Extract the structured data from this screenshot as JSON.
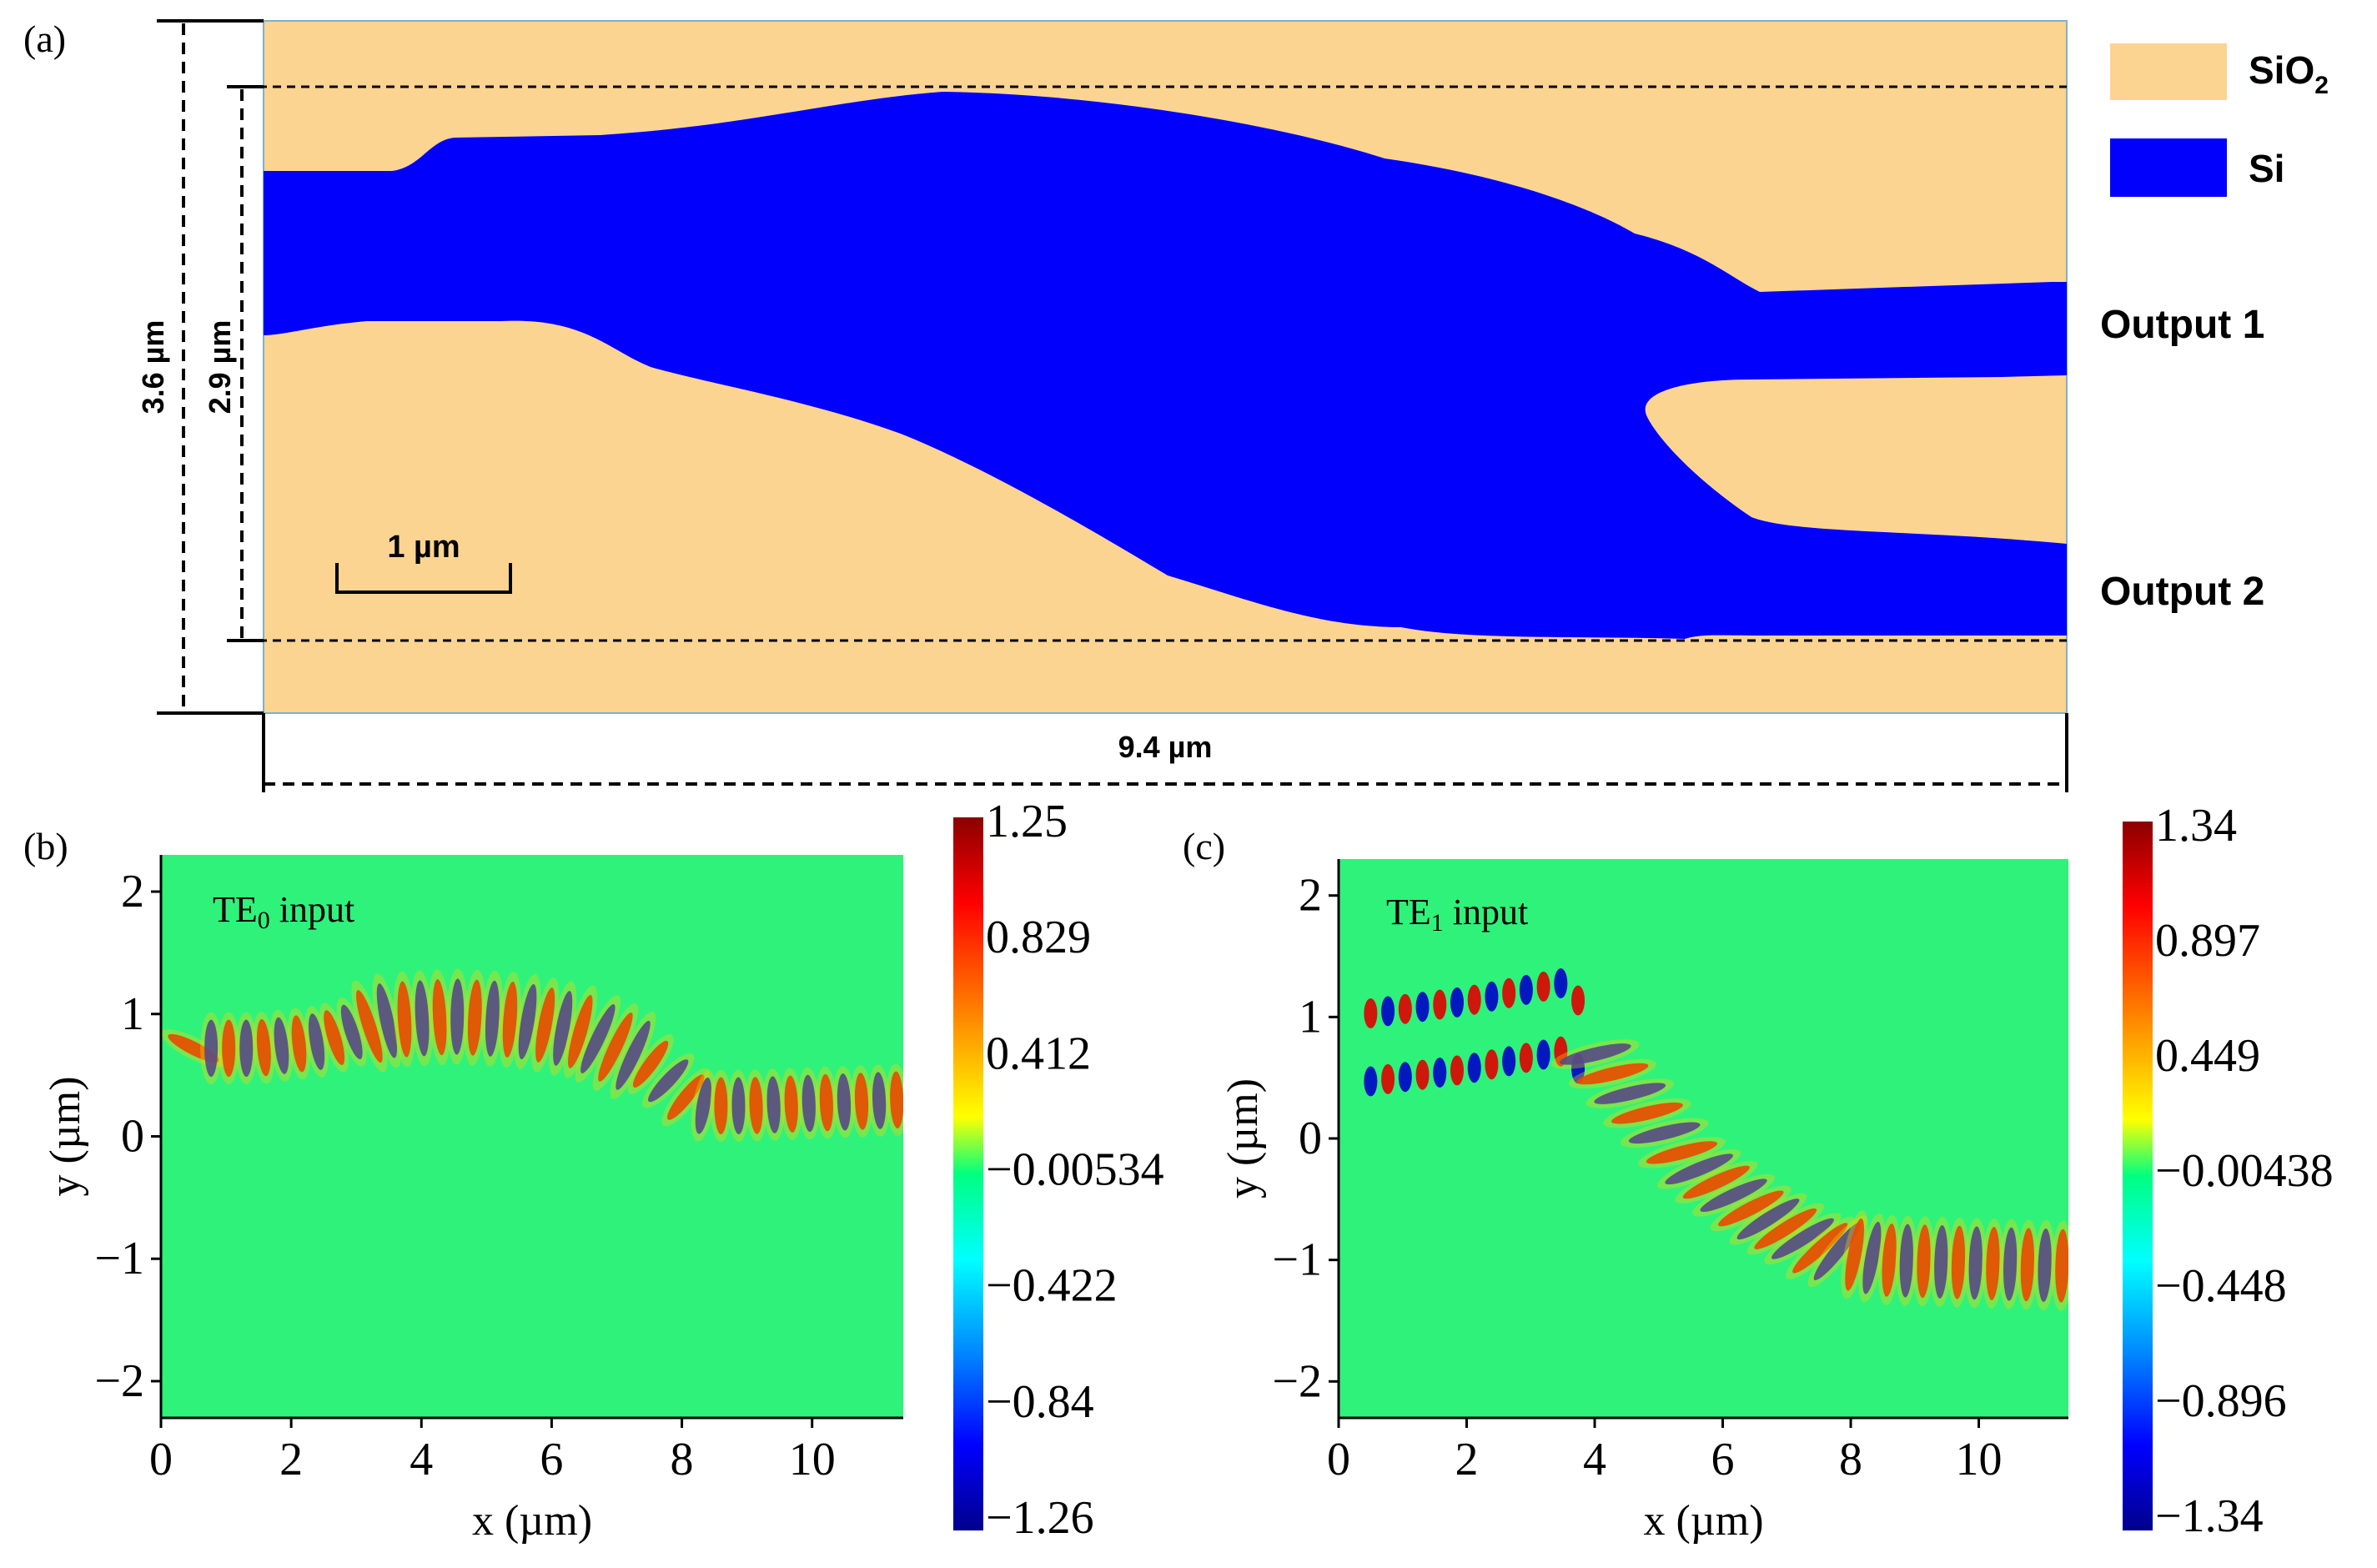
{
  "panel_a": {
    "label": "(a)",
    "legend": [
      {
        "name": "SiO",
        "sub": "2",
        "color": "#fbd491"
      },
      {
        "name": "Si",
        "sub": "",
        "color": "#0000fc"
      }
    ],
    "outputs": [
      "Output 1",
      "Output 2"
    ],
    "dim_outer": "3.6 µm",
    "dim_inner": "2.9 µm",
    "dim_length": "9.4 µm",
    "scale_bar": "1 µm"
  },
  "panel_b": {
    "label": "(b)",
    "annotation_main": "TE",
    "annotation_sub": "0",
    "annotation_rest": " input",
    "colorbar_ticks": [
      "1.25",
      "0.829",
      "0.412",
      "−0.00534",
      "−0.422",
      "−0.84",
      "−1.26"
    ]
  },
  "panel_c": {
    "label": "(c)",
    "annotation_main": "TE",
    "annotation_sub": "1",
    "annotation_rest": " input",
    "colorbar_ticks": [
      "1.34",
      "0.897",
      "0.449",
      "−0.00438",
      "−0.448",
      "−0.896",
      "−1.34"
    ]
  },
  "chart_data": [
    {
      "type": "heatmap",
      "title": "TE0 input",
      "xlabel": "x (µm)",
      "ylabel": "y (µm)",
      "xlim": [
        0,
        11.4
      ],
      "ylim": [
        -2.3,
        2.3
      ],
      "x_ticks": [
        0,
        2,
        4,
        6,
        8,
        10
      ],
      "y_ticks": [
        2,
        1,
        0,
        -1,
        -2
      ],
      "x_tick_labels": [
        "0",
        "2",
        "4",
        "6",
        "8",
        "10"
      ],
      "y_tick_labels": [
        "2",
        "1",
        "0",
        "−1",
        "−2"
      ],
      "colorbar_range": [
        -1.26,
        1.25
      ],
      "path": [
        [
          0.5,
          0.72
        ],
        [
          1.5,
          0.72
        ],
        [
          2.5,
          0.78
        ],
        [
          3.5,
          0.95
        ],
        [
          4.5,
          0.98
        ],
        [
          5.5,
          0.95
        ],
        [
          6.5,
          0.85
        ],
        [
          7.5,
          0.6
        ],
        [
          8.2,
          0.25
        ],
        [
          9.0,
          0.25
        ],
        [
          11.4,
          0.3
        ]
      ]
    },
    {
      "type": "heatmap",
      "title": "TE1 input",
      "xlabel": "x (µm)",
      "ylabel": "y (µm)",
      "xlim": [
        0,
        11.4
      ],
      "ylim": [
        -2.3,
        2.3
      ],
      "x_ticks": [
        0,
        2,
        4,
        6,
        8,
        10
      ],
      "y_ticks": [
        2,
        1,
        0,
        -1,
        -2
      ],
      "x_tick_labels": [
        "0",
        "2",
        "4",
        "6",
        "8",
        "10"
      ],
      "y_tick_labels": [
        "2",
        "1",
        "0",
        "−1",
        "−2"
      ],
      "colorbar_range": [
        -1.34,
        1.34
      ],
      "path": [
        [
          0.5,
          0.75
        ],
        [
          2.0,
          0.85
        ],
        [
          3.5,
          1.0
        ],
        [
          4.5,
          0.4
        ],
        [
          5.5,
          -0.2
        ],
        [
          6.5,
          -0.6
        ],
        [
          7.5,
          -0.9
        ],
        [
          8.5,
          -1.0
        ],
        [
          11.4,
          -1.05
        ]
      ]
    }
  ]
}
